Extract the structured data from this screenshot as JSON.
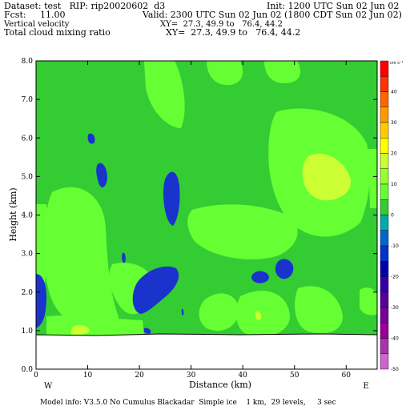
{
  "header": {
    "dataset": "Dataset: test   RIP: rip20020602  d3",
    "init": "Init: 1200 UTC Sun 02 Jun 02",
    "fcst": "Fcst:     11.00",
    "valid": "Valid: 2300 UTC Sun 02 Jun 02 (1800 CDT Sun 02 Jun 02)",
    "field1": "Vertical velocity",
    "xy1": "XY=  27.3, 49.9 to   76.4, 44.2",
    "field2": "Total cloud mixing ratio",
    "xy2": "XY=  27.3, 49.9 to   76.4, 44.2"
  },
  "footer": "Model info: V3.5.0 No Cumulus Blackadar  Simple ice    1 km,  29 levels,     3 sec",
  "chart_data": {
    "type": "heatmap",
    "title": "",
    "xlabel": "Distance (km)",
    "ylabel": "Height (km)",
    "xlim": [
      0,
      66
    ],
    "ylim": [
      0,
      8
    ],
    "x_ticks": [
      "0",
      "10",
      "20",
      "30",
      "40",
      "50",
      "60"
    ],
    "y_ticks": [
      "0.0",
      "1.0",
      "2.0",
      "3.0",
      "4.0",
      "5.0",
      "6.0",
      "7.0",
      "8.0"
    ],
    "x_endpoints": {
      "left": "W",
      "right": "E"
    },
    "terrain_height_km": 0.85,
    "colorbar": {
      "unit": "cm s⁻¹",
      "labels": [
        "40",
        "30",
        "20",
        "10",
        "0",
        "-10",
        "-20",
        "-30",
        "-40",
        "-50"
      ],
      "colors": [
        "#ff0000",
        "#ff3300",
        "#ff6600",
        "#ff9900",
        "#ffcc00",
        "#ffff00",
        "#ccff33",
        "#99ff33",
        "#66ff33",
        "#33cc33",
        "#00aaaa",
        "#0066cc",
        "#0033cc",
        "#0000aa",
        "#3300aa",
        "#550099",
        "#770099",
        "#990099",
        "#aa33aa",
        "#cc66cc"
      ]
    },
    "regions": [
      {
        "name": "light-green",
        "color": "#66ff33"
      },
      {
        "name": "yellow-green",
        "color": "#ccff33"
      },
      {
        "name": "blue",
        "color": "#1a33cc"
      }
    ]
  }
}
